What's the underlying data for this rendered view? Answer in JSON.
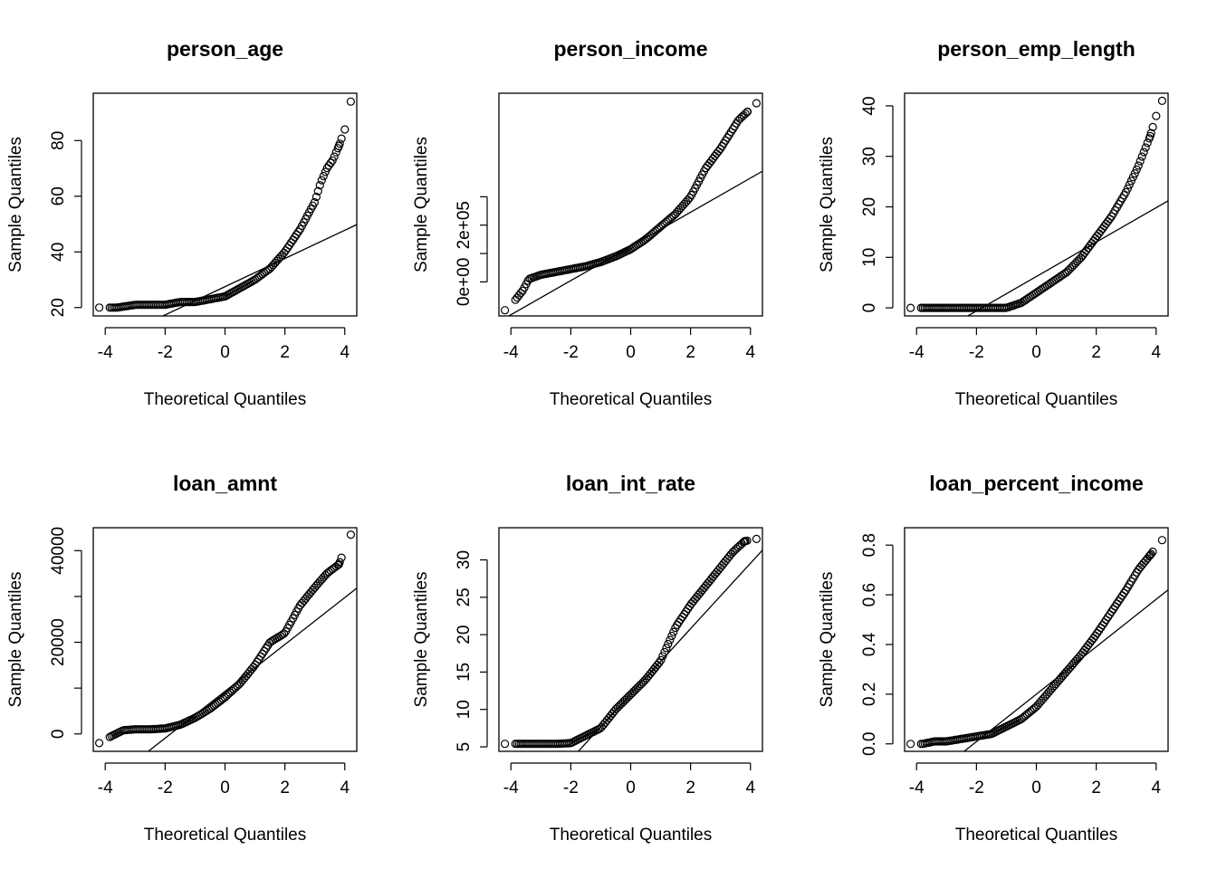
{
  "chart_data": [
    {
      "type": "scatter",
      "title": "person_age",
      "xlabel": "Theoretical Quantiles",
      "ylabel": "Sample Quantiles",
      "xlim": [
        -4.4,
        4.4
      ],
      "ylim": [
        17,
        97
      ],
      "x_ticks": [
        -4,
        -2,
        0,
        2,
        4
      ],
      "x_tick_labels": [
        "-4",
        "-2",
        "0",
        "2",
        "4"
      ],
      "y_ticks": [
        20,
        40,
        60,
        80
      ],
      "y_tick_labels": [
        "20",
        "40",
        "60",
        "80"
      ],
      "quantiles": [
        [
          -4.2,
          20
        ],
        [
          -3.6,
          20
        ],
        [
          -3.0,
          21
        ],
        [
          -2.5,
          21
        ],
        [
          -2.0,
          21
        ],
        [
          -1.5,
          22
        ],
        [
          -1.0,
          22
        ],
        [
          -0.5,
          23
        ],
        [
          0.0,
          24
        ],
        [
          0.5,
          27
        ],
        [
          1.0,
          30
        ],
        [
          1.5,
          34
        ],
        [
          2.0,
          40
        ],
        [
          2.5,
          48
        ],
        [
          3.0,
          58
        ],
        [
          3.2,
          65
        ],
        [
          3.4,
          70
        ],
        [
          3.6,
          73
        ],
        [
          3.8,
          78
        ],
        [
          4.0,
          84
        ],
        [
          4.2,
          94
        ]
      ],
      "reference_line": [
        [
          -4.4,
          5.2
        ],
        [
          4.4,
          49.8
        ]
      ],
      "grid": false,
      "legend": "none"
    },
    {
      "type": "scatter",
      "title": "person_income",
      "xlabel": "Theoretical Quantiles",
      "ylabel": "Sample Quantiles",
      "xlim": [
        -4.4,
        4.4
      ],
      "ylim": [
        -120000,
        665000
      ],
      "x_ticks": [
        -4,
        -2,
        0,
        2,
        4
      ],
      "x_tick_labels": [
        "-4",
        "-2",
        "0",
        "2",
        "4"
      ],
      "y_ticks": [
        0,
        200000
      ],
      "y_tick_labels": [
        "0e+00",
        "2e+05"
      ],
      "y_minor_ticks": [
        100000,
        300000
      ],
      "quantiles": [
        [
          -4.2,
          -100000
        ],
        [
          -3.9,
          -70000
        ],
        [
          -3.6,
          -30000
        ],
        [
          -3.4,
          10000
        ],
        [
          -3.0,
          25000
        ],
        [
          -2.5,
          35000
        ],
        [
          -2.0,
          45000
        ],
        [
          -1.5,
          55000
        ],
        [
          -1.0,
          70000
        ],
        [
          -0.5,
          90000
        ],
        [
          0.0,
          115000
        ],
        [
          0.5,
          150000
        ],
        [
          1.0,
          195000
        ],
        [
          1.5,
          240000
        ],
        [
          2.0,
          300000
        ],
        [
          2.5,
          400000
        ],
        [
          3.0,
          470000
        ],
        [
          3.3,
          520000
        ],
        [
          3.6,
          570000
        ],
        [
          3.9,
          600000
        ],
        [
          4.2,
          630000
        ]
      ],
      "reference_line": [
        [
          -4.4,
          -140000
        ],
        [
          4.4,
          390000
        ]
      ],
      "grid": false,
      "legend": "none"
    },
    {
      "type": "scatter",
      "title": "person_emp_length",
      "xlabel": "Theoretical Quantiles",
      "ylabel": "Sample Quantiles",
      "xlim": [
        -4.4,
        4.4
      ],
      "ylim": [
        -1.6,
        42.5
      ],
      "x_ticks": [
        -4,
        -2,
        0,
        2,
        4
      ],
      "x_tick_labels": [
        "-4",
        "-2",
        "0",
        "2",
        "4"
      ],
      "y_ticks": [
        0,
        10,
        20,
        30,
        40
      ],
      "y_tick_labels": [
        "0",
        "10",
        "20",
        "30",
        "40"
      ],
      "quantiles": [
        [
          -4.2,
          0
        ],
        [
          -3.6,
          0
        ],
        [
          -3.0,
          0
        ],
        [
          -2.5,
          0
        ],
        [
          -2.0,
          0
        ],
        [
          -1.5,
          0
        ],
        [
          -1.0,
          0
        ],
        [
          -0.5,
          1
        ],
        [
          0.0,
          3
        ],
        [
          0.5,
          5
        ],
        [
          1.0,
          7
        ],
        [
          1.5,
          10
        ],
        [
          2.0,
          14
        ],
        [
          2.5,
          18
        ],
        [
          3.0,
          23
        ],
        [
          3.4,
          28
        ],
        [
          3.6,
          31
        ],
        [
          3.8,
          34
        ],
        [
          4.0,
          38
        ],
        [
          4.2,
          41
        ]
      ],
      "reference_line": [
        [
          -4.4,
          -8.8
        ],
        [
          4.4,
          21.2
        ]
      ],
      "grid": false,
      "legend": "none"
    },
    {
      "type": "scatter",
      "title": "loan_amnt",
      "xlabel": "Theoretical Quantiles",
      "ylabel": "Sample Quantiles",
      "xlim": [
        -4.4,
        4.4
      ],
      "ylim": [
        -3800,
        45000
      ],
      "x_ticks": [
        -4,
        -2,
        0,
        2,
        4
      ],
      "x_tick_labels": [
        "-4",
        "-2",
        "0",
        "2",
        "4"
      ],
      "y_ticks": [
        0,
        20000,
        40000
      ],
      "y_tick_labels": [
        "0",
        "20000",
        "40000"
      ],
      "y_minor_ticks": [
        10000,
        30000
      ],
      "quantiles": [
        [
          -4.2,
          -2000
        ],
        [
          -3.8,
          -500
        ],
        [
          -3.4,
          800
        ],
        [
          -3.0,
          1000
        ],
        [
          -2.5,
          1000
        ],
        [
          -2.0,
          1200
        ],
        [
          -1.5,
          2000
        ],
        [
          -1.0,
          3500
        ],
        [
          -0.5,
          5500
        ],
        [
          0.0,
          8000
        ],
        [
          0.5,
          11000
        ],
        [
          1.0,
          15000
        ],
        [
          1.5,
          20000
        ],
        [
          2.0,
          22000
        ],
        [
          2.5,
          28000
        ],
        [
          3.0,
          32000
        ],
        [
          3.4,
          35000
        ],
        [
          3.8,
          37000
        ],
        [
          4.2,
          43500
        ]
      ],
      "reference_line": [
        [
          -4.4,
          -13200
        ],
        [
          4.4,
          31800
        ]
      ],
      "grid": false,
      "legend": "none"
    },
    {
      "type": "scatter",
      "title": "loan_int_rate",
      "xlabel": "Theoretical Quantiles",
      "ylabel": "Sample Quantiles",
      "xlim": [
        -4.4,
        4.4
      ],
      "ylim": [
        4.4,
        34.3
      ],
      "x_ticks": [
        -4,
        -2,
        0,
        2,
        4
      ],
      "x_tick_labels": [
        "-4",
        "-2",
        "0",
        "2",
        "4"
      ],
      "y_ticks": [
        5,
        10,
        15,
        20,
        25,
        30
      ],
      "y_tick_labels": [
        "5",
        "10",
        "15",
        "20",
        "25",
        "30"
      ],
      "quantiles": [
        [
          -4.2,
          5.4
        ],
        [
          -3.6,
          5.4
        ],
        [
          -3.0,
          5.4
        ],
        [
          -2.5,
          5.4
        ],
        [
          -2.0,
          5.5
        ],
        [
          -1.5,
          6.5
        ],
        [
          -1.0,
          7.5
        ],
        [
          -0.5,
          10
        ],
        [
          0.0,
          12
        ],
        [
          0.5,
          14
        ],
        [
          1.0,
          16.5
        ],
        [
          1.5,
          21
        ],
        [
          2.0,
          24
        ],
        [
          2.5,
          26.5
        ],
        [
          3.0,
          29
        ],
        [
          3.4,
          31
        ],
        [
          3.8,
          32.5
        ],
        [
          4.2,
          32.8
        ]
      ],
      "reference_line": [
        [
          -4.4,
          -7.2
        ],
        [
          4.4,
          31.3
        ]
      ],
      "grid": false,
      "legend": "none"
    },
    {
      "type": "scatter",
      "title": "loan_percent_income",
      "xlabel": "Theoretical Quantiles",
      "ylabel": "Sample Quantiles",
      "xlim": [
        -4.4,
        4.4
      ],
      "ylim": [
        -0.03,
        0.87
      ],
      "x_ticks": [
        -4,
        -2,
        0,
        2,
        4
      ],
      "x_tick_labels": [
        "-4",
        "-2",
        "0",
        "2",
        "4"
      ],
      "y_ticks": [
        0.0,
        0.2,
        0.4,
        0.6,
        0.8
      ],
      "y_tick_labels": [
        "0.0",
        "0.2",
        "0.4",
        "0.6",
        "0.8"
      ],
      "quantiles": [
        [
          -4.2,
          0.0
        ],
        [
          -3.8,
          0.0
        ],
        [
          -3.4,
          0.01
        ],
        [
          -3.0,
          0.01
        ],
        [
          -2.5,
          0.02
        ],
        [
          -2.0,
          0.03
        ],
        [
          -1.5,
          0.04
        ],
        [
          -1.0,
          0.07
        ],
        [
          -0.5,
          0.1
        ],
        [
          0.0,
          0.15
        ],
        [
          0.5,
          0.22
        ],
        [
          1.0,
          0.29
        ],
        [
          1.5,
          0.36
        ],
        [
          2.0,
          0.44
        ],
        [
          2.5,
          0.53
        ],
        [
          3.0,
          0.62
        ],
        [
          3.4,
          0.7
        ],
        [
          3.8,
          0.76
        ],
        [
          4.2,
          0.82
        ]
      ],
      "reference_line": [
        [
          -4.4,
          -0.22
        ],
        [
          4.4,
          0.62
        ]
      ],
      "grid": false,
      "legend": "none"
    }
  ]
}
